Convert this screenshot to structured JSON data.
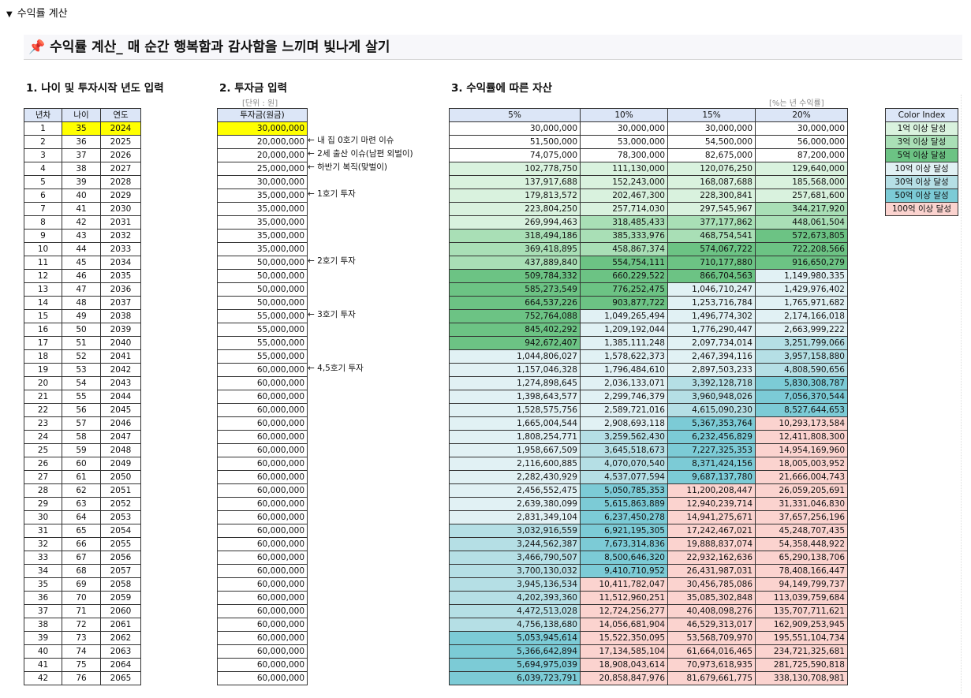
{
  "toggle_label": "수익률 계산",
  "banner": {
    "icon": "pushpin-icon",
    "title": "수익률 계산_ 매 순간 행복함과 감사함을 느끼며 빛나게 살기"
  },
  "section1": {
    "title": "1. 나이 및 투자시작 년도 입력",
    "headers": [
      "년차",
      "나이",
      "연도"
    ]
  },
  "section2": {
    "title": "2. 투자금 입력",
    "unit_note": "[단위 : 원]",
    "header": "투자금(원금)"
  },
  "section3": {
    "title": "3. 수익률에 따른 자산",
    "rate_note": "[%는 년 수익률]",
    "headers": [
      "5%",
      "10%",
      "15%",
      "20%"
    ]
  },
  "color_index": {
    "header": "Color Index",
    "items": [
      {
        "label": "1억 이상 달성",
        "color": "#d9f2de"
      },
      {
        "label": "3억 이상 달성",
        "color": "#a9dfb6"
      },
      {
        "label": "5억 이상 달성",
        "color": "#6cc384"
      },
      {
        "label": "10억 이상 달성",
        "color": "#e1f1f4"
      },
      {
        "label": "30억 이상 달성",
        "color": "#b5dfe5"
      },
      {
        "label": "50억 이상 달성",
        "color": "#7ccbd6"
      },
      {
        "label": "100억 이상 달성",
        "color": "#fbd3cf"
      }
    ]
  },
  "invest_notes": [
    {
      "row": 2,
      "text": "← 내 집 0호기 마련 이슈"
    },
    {
      "row": 3,
      "text": "← 2세 출산 이슈(남편 외벌이)"
    },
    {
      "row": 4,
      "text": "← 하반기 복직(맞벌이)"
    },
    {
      "row": 6,
      "text": "← 1호기 투자"
    },
    {
      "row": 11,
      "text": "← 2호기 투자"
    },
    {
      "row": 15,
      "text": "← 3호기 투자"
    },
    {
      "row": 19,
      "text": "← 4,5호기 투자"
    }
  ],
  "rows": [
    {
      "year_no": "1",
      "age": "35",
      "year": "2024",
      "invest": "30,000,000",
      "r5": "30,000,000",
      "r10": "30,000,000",
      "r15": "30,000,000",
      "r20": "30,000,000"
    },
    {
      "year_no": "2",
      "age": "36",
      "year": "2025",
      "invest": "20,000,000",
      "r5": "51,500,000",
      "r10": "53,000,000",
      "r15": "54,500,000",
      "r20": "56,000,000"
    },
    {
      "year_no": "3",
      "age": "37",
      "year": "2026",
      "invest": "20,000,000",
      "r5": "74,075,000",
      "r10": "78,300,000",
      "r15": "82,675,000",
      "r20": "87,200,000"
    },
    {
      "year_no": "4",
      "age": "38",
      "year": "2027",
      "invest": "25,000,000",
      "r5": "102,778,750",
      "r10": "111,130,000",
      "r15": "120,076,250",
      "r20": "129,640,000"
    },
    {
      "year_no": "5",
      "age": "39",
      "year": "2028",
      "invest": "30,000,000",
      "r5": "137,917,688",
      "r10": "152,243,000",
      "r15": "168,087,688",
      "r20": "185,568,000"
    },
    {
      "year_no": "6",
      "age": "40",
      "year": "2029",
      "invest": "35,000,000",
      "r5": "179,813,572",
      "r10": "202,467,300",
      "r15": "228,300,841",
      "r20": "257,681,600"
    },
    {
      "year_no": "7",
      "age": "41",
      "year": "2030",
      "invest": "35,000,000",
      "r5": "223,804,250",
      "r10": "257,714,030",
      "r15": "297,545,967",
      "r20": "344,217,920"
    },
    {
      "year_no": "8",
      "age": "42",
      "year": "2031",
      "invest": "35,000,000",
      "r5": "269,994,463",
      "r10": "318,485,433",
      "r15": "377,177,862",
      "r20": "448,061,504"
    },
    {
      "year_no": "9",
      "age": "43",
      "year": "2032",
      "invest": "35,000,000",
      "r5": "318,494,186",
      "r10": "385,333,976",
      "r15": "468,754,541",
      "r20": "572,673,805"
    },
    {
      "year_no": "10",
      "age": "44",
      "year": "2033",
      "invest": "35,000,000",
      "r5": "369,418,895",
      "r10": "458,867,374",
      "r15": "574,067,722",
      "r20": "722,208,566"
    },
    {
      "year_no": "11",
      "age": "45",
      "year": "2034",
      "invest": "50,000,000",
      "r5": "437,889,840",
      "r10": "554,754,111",
      "r15": "710,177,880",
      "r20": "916,650,279"
    },
    {
      "year_no": "12",
      "age": "46",
      "year": "2035",
      "invest": "50,000,000",
      "r5": "509,784,332",
      "r10": "660,229,522",
      "r15": "866,704,563",
      "r20": "1,149,980,335"
    },
    {
      "year_no": "13",
      "age": "47",
      "year": "2036",
      "invest": "50,000,000",
      "r5": "585,273,549",
      "r10": "776,252,475",
      "r15": "1,046,710,247",
      "r20": "1,429,976,402"
    },
    {
      "year_no": "14",
      "age": "48",
      "year": "2037",
      "invest": "50,000,000",
      "r5": "664,537,226",
      "r10": "903,877,722",
      "r15": "1,253,716,784",
      "r20": "1,765,971,682"
    },
    {
      "year_no": "15",
      "age": "49",
      "year": "2038",
      "invest": "55,000,000",
      "r5": "752,764,088",
      "r10": "1,049,265,494",
      "r15": "1,496,774,302",
      "r20": "2,174,166,018"
    },
    {
      "year_no": "16",
      "age": "50",
      "year": "2039",
      "invest": "55,000,000",
      "r5": "845,402,292",
      "r10": "1,209,192,044",
      "r15": "1,776,290,447",
      "r20": "2,663,999,222"
    },
    {
      "year_no": "17",
      "age": "51",
      "year": "2040",
      "invest": "55,000,000",
      "r5": "942,672,407",
      "r10": "1,385,111,248",
      "r15": "2,097,734,014",
      "r20": "3,251,799,066"
    },
    {
      "year_no": "18",
      "age": "52",
      "year": "2041",
      "invest": "55,000,000",
      "r5": "1,044,806,027",
      "r10": "1,578,622,373",
      "r15": "2,467,394,116",
      "r20": "3,957,158,880"
    },
    {
      "year_no": "19",
      "age": "53",
      "year": "2042",
      "invest": "60,000,000",
      "r5": "1,157,046,328",
      "r10": "1,796,484,610",
      "r15": "2,897,503,233",
      "r20": "4,808,590,656"
    },
    {
      "year_no": "20",
      "age": "54",
      "year": "2043",
      "invest": "60,000,000",
      "r5": "1,274,898,645",
      "r10": "2,036,133,071",
      "r15": "3,392,128,718",
      "r20": "5,830,308,787"
    },
    {
      "year_no": "21",
      "age": "55",
      "year": "2044",
      "invest": "60,000,000",
      "r5": "1,398,643,577",
      "r10": "2,299,746,379",
      "r15": "3,960,948,026",
      "r20": "7,056,370,544"
    },
    {
      "year_no": "22",
      "age": "56",
      "year": "2045",
      "invest": "60,000,000",
      "r5": "1,528,575,756",
      "r10": "2,589,721,016",
      "r15": "4,615,090,230",
      "r20": "8,527,644,653"
    },
    {
      "year_no": "23",
      "age": "57",
      "year": "2046",
      "invest": "60,000,000",
      "r5": "1,665,004,544",
      "r10": "2,908,693,118",
      "r15": "5,367,353,764",
      "r20": "10,293,173,584"
    },
    {
      "year_no": "24",
      "age": "58",
      "year": "2047",
      "invest": "60,000,000",
      "r5": "1,808,254,771",
      "r10": "3,259,562,430",
      "r15": "6,232,456,829",
      "r20": "12,411,808,300"
    },
    {
      "year_no": "25",
      "age": "59",
      "year": "2048",
      "invest": "60,000,000",
      "r5": "1,958,667,509",
      "r10": "3,645,518,673",
      "r15": "7,227,325,353",
      "r20": "14,954,169,960"
    },
    {
      "year_no": "26",
      "age": "60",
      "year": "2049",
      "invest": "60,000,000",
      "r5": "2,116,600,885",
      "r10": "4,070,070,540",
      "r15": "8,371,424,156",
      "r20": "18,005,003,952"
    },
    {
      "year_no": "27",
      "age": "61",
      "year": "2050",
      "invest": "60,000,000",
      "r5": "2,282,430,929",
      "r10": "4,537,077,594",
      "r15": "9,687,137,780",
      "r20": "21,666,004,743"
    },
    {
      "year_no": "28",
      "age": "62",
      "year": "2051",
      "invest": "60,000,000",
      "r5": "2,456,552,475",
      "r10": "5,050,785,353",
      "r15": "11,200,208,447",
      "r20": "26,059,205,691"
    },
    {
      "year_no": "29",
      "age": "63",
      "year": "2052",
      "invest": "60,000,000",
      "r5": "2,639,380,099",
      "r10": "5,615,863,889",
      "r15": "12,940,239,714",
      "r20": "31,331,046,830"
    },
    {
      "year_no": "30",
      "age": "64",
      "year": "2053",
      "invest": "60,000,000",
      "r5": "2,831,349,104",
      "r10": "6,237,450,278",
      "r15": "14,941,275,671",
      "r20": "37,657,256,196"
    },
    {
      "year_no": "31",
      "age": "65",
      "year": "2054",
      "invest": "60,000,000",
      "r5": "3,032,916,559",
      "r10": "6,921,195,305",
      "r15": "17,242,467,021",
      "r20": "45,248,707,435"
    },
    {
      "year_no": "32",
      "age": "66",
      "year": "2055",
      "invest": "60,000,000",
      "r5": "3,244,562,387",
      "r10": "7,673,314,836",
      "r15": "19,888,837,074",
      "r20": "54,358,448,922"
    },
    {
      "year_no": "33",
      "age": "67",
      "year": "2056",
      "invest": "60,000,000",
      "r5": "3,466,790,507",
      "r10": "8,500,646,320",
      "r15": "22,932,162,636",
      "r20": "65,290,138,706"
    },
    {
      "year_no": "34",
      "age": "68",
      "year": "2057",
      "invest": "60,000,000",
      "r5": "3,700,130,032",
      "r10": "9,410,710,952",
      "r15": "26,431,987,031",
      "r20": "78,408,166,447"
    },
    {
      "year_no": "35",
      "age": "69",
      "year": "2058",
      "invest": "60,000,000",
      "r5": "3,945,136,534",
      "r10": "10,411,782,047",
      "r15": "30,456,785,086",
      "r20": "94,149,799,737"
    },
    {
      "year_no": "36",
      "age": "70",
      "year": "2059",
      "invest": "60,000,000",
      "r5": "4,202,393,360",
      "r10": "11,512,960,251",
      "r15": "35,085,302,848",
      "r20": "113,039,759,684"
    },
    {
      "year_no": "37",
      "age": "71",
      "year": "2060",
      "invest": "60,000,000",
      "r5": "4,472,513,028",
      "r10": "12,724,256,277",
      "r15": "40,408,098,276",
      "r20": "135,707,711,621"
    },
    {
      "year_no": "38",
      "age": "72",
      "year": "2061",
      "invest": "60,000,000",
      "r5": "4,756,138,680",
      "r10": "14,056,681,904",
      "r15": "46,529,313,017",
      "r20": "162,909,253,945"
    },
    {
      "year_no": "39",
      "age": "73",
      "year": "2062",
      "invest": "60,000,000",
      "r5": "5,053,945,614",
      "r10": "15,522,350,095",
      "r15": "53,568,709,970",
      "r20": "195,551,104,734"
    },
    {
      "year_no": "40",
      "age": "74",
      "year": "2063",
      "invest": "60,000,000",
      "r5": "5,366,642,894",
      "r10": "17,134,585,104",
      "r15": "61,664,016,465",
      "r20": "234,721,325,681"
    },
    {
      "year_no": "41",
      "age": "75",
      "year": "2064",
      "invest": "60,000,000",
      "r5": "5,694,975,039",
      "r10": "18,908,043,614",
      "r15": "70,973,618,935",
      "r20": "281,725,590,818"
    },
    {
      "year_no": "42",
      "age": "76",
      "year": "2065",
      "invest": "60,000,000",
      "r5": "6,039,723,791",
      "r10": "20,858,847,976",
      "r15": "81,679,661,775",
      "r20": "338,130,708,981"
    }
  ]
}
